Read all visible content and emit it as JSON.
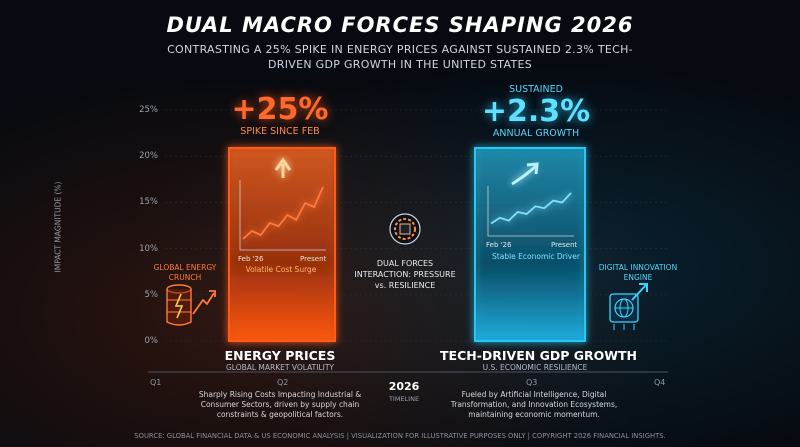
{
  "title": "DUAL MACRO FORCES SHAPING 2026",
  "subtitle": "CONTRASTING A 25% SPIKE IN ENERGY PRICES AGAINST SUSTAINED 2.3% TECH-DRIVEN GDP GROWTH IN THE UNITED STATES",
  "footer": "SOURCE: GLOBAL FINANCIAL DATA & US ECONOMIC ANALYSIS | VISUALIZATION FOR ILLUSTRATIVE PURPOSES ONLY | COPYRIGHT 2026 FINANCIAL INSIGHTS.",
  "colors": {
    "energy": "#ff5a1f",
    "growth": "#27c8f5",
    "background": "#070a10"
  },
  "chart_data": {
    "type": "bar",
    "ylabel": "IMPACT MAGNITUDE (%)",
    "ylim": [
      0,
      25
    ],
    "yticks": [
      "0%",
      "5%",
      "10%",
      "15%",
      "20%",
      "25%"
    ],
    "categories": [
      "ENERGY PRICES",
      "TECH-DRIVEN GDP GROWTH"
    ],
    "values": [
      25,
      2.3
    ],
    "x_ticks": [
      "Q1",
      "Q2",
      "Q3",
      "Q4"
    ],
    "timeline_year": "2026",
    "timeline_label": "TIMELINE",
    "grid": true,
    "bars": [
      {
        "name": "ENERGY PRICES",
        "value_label": "+25%",
        "caption": "SPIKE SINCE FEB",
        "subtitle": "GLOBAL MARKET VOLATILITY",
        "description": "Sharply Rising Costs Impacting Industrial & Consumer Sectors, driven by supply chain constraints & geopolitical factors.",
        "inset_start": "Feb '26",
        "inset_end": "Present",
        "inset_caption": "Volatile Cost Surge",
        "side_label": "GLOBAL ENERGY CRUNCH",
        "side_icon": "oil-barrel-icon",
        "trend": [
          1,
          2,
          1.5,
          3,
          2.6,
          4,
          3.4,
          5.5,
          5,
          7.5
        ]
      },
      {
        "name": "TECH-DRIVEN GDP GROWTH",
        "value_label": "+2.3%",
        "caption_top": "SUSTAINED",
        "caption": "ANNUAL GROWTH",
        "subtitle": "U.S. ECONOMIC RESILIENCE",
        "description": "Fueled by Artificial Intelligence, Digital Transformation, and Innovation Ecosystems, maintaining economic momentum.",
        "inset_start": "Feb '26",
        "inset_end": "Present",
        "inset_caption": "Stable Economic Driver",
        "side_label": "DIGITAL INNOVATION ENGINE",
        "side_icon": "globe-chip-icon",
        "trend": [
          1,
          1.6,
          1.3,
          2.2,
          2.0,
          2.8,
          2.6,
          3.4,
          3.2,
          4.2
        ]
      }
    ],
    "center_label": "DUAL FORCES INTERACTION: PRESSURE vs. RESILIENCE",
    "center_icon": "gear-chip-icon"
  }
}
